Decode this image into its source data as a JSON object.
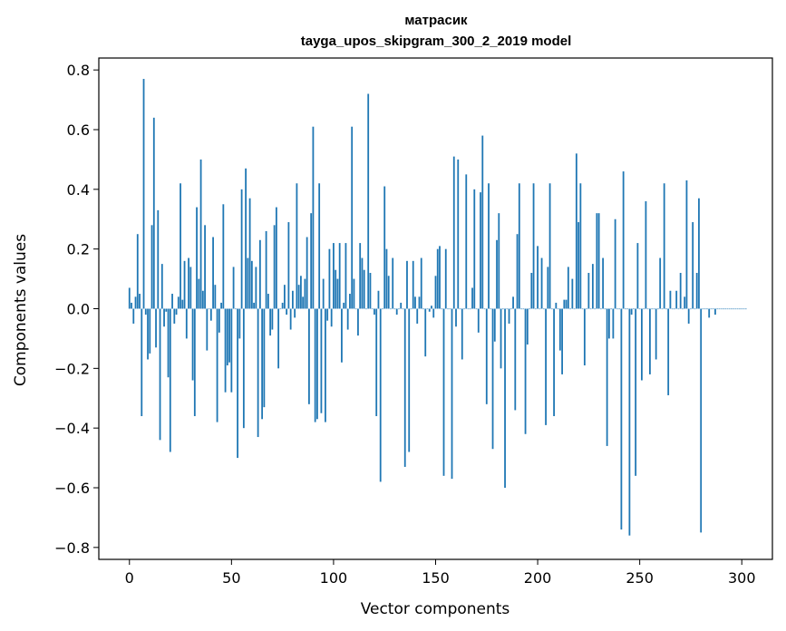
{
  "chart_data": {
    "type": "bar",
    "title": "матрасик",
    "subtitle": "tayga_upos_skipgram_300_2_2019 model",
    "xlabel": "Vector components",
    "ylabel": "Components values",
    "xlim": [
      -15,
      315
    ],
    "ylim": [
      -0.84,
      0.84
    ],
    "xticks": [
      0,
      50,
      100,
      150,
      200,
      250,
      300
    ],
    "xtick_labels": [
      "0",
      "50",
      "100",
      "150",
      "200",
      "250",
      "300"
    ],
    "yticks": [
      0.8,
      0.6,
      0.4,
      0.2,
      0.0,
      -0.2,
      -0.4,
      -0.6,
      -0.8
    ],
    "ytick_labels": [
      "0.8",
      "0.6",
      "0.4",
      "0.2",
      "0.0",
      "−0.2",
      "−0.4",
      "−0.6",
      "−0.8"
    ],
    "grid": false,
    "legend": "none",
    "bar_color": "#1f77b4",
    "values": [
      0.07,
      0.02,
      -0.05,
      0.04,
      0.25,
      0.05,
      -0.36,
      0.77,
      -0.02,
      -0.17,
      -0.15,
      0.28,
      0.64,
      -0.13,
      0.33,
      -0.44,
      0.15,
      -0.06,
      -0.01,
      -0.23,
      -0.48,
      0.05,
      -0.05,
      -0.02,
      0.04,
      0.42,
      0.03,
      0.16,
      -0.1,
      0.17,
      0.14,
      -0.24,
      -0.36,
      0.34,
      0.1,
      0.5,
      0.06,
      0.28,
      -0.14,
      0.0,
      -0.04,
      0.24,
      0.08,
      -0.38,
      -0.08,
      0.02,
      0.35,
      -0.28,
      -0.19,
      -0.18,
      -0.28,
      0.14,
      0.0,
      -0.5,
      -0.1,
      0.4,
      -0.4,
      0.47,
      0.17,
      0.37,
      0.16,
      0.02,
      0.14,
      -0.43,
      0.23,
      -0.37,
      -0.33,
      0.26,
      0.05,
      -0.09,
      -0.07,
      0.28,
      0.34,
      -0.2,
      0.0,
      0.02,
      0.08,
      -0.02,
      0.29,
      -0.07,
      0.06,
      -0.03,
      0.42,
      0.08,
      0.11,
      0.04,
      0.1,
      0.24,
      -0.32,
      0.32,
      0.61,
      -0.38,
      -0.37,
      0.42,
      -0.35,
      0.1,
      -0.38,
      -0.04,
      0.2,
      -0.06,
      0.22,
      0.13,
      0.1,
      0.22,
      -0.18,
      0.02,
      0.22,
      -0.07,
      0.05,
      0.61,
      0.1,
      0.0,
      -0.09,
      0.22,
      0.17,
      0.13,
      0.0,
      0.72,
      0.12,
      0.0,
      -0.02,
      -0.36,
      0.06,
      -0.58,
      0.0,
      0.41,
      0.2,
      0.11,
      0.0,
      0.17,
      0.0,
      -0.02,
      0.0,
      0.02,
      0.0,
      -0.53,
      0.16,
      -0.48,
      0.0,
      0.16,
      0.04,
      -0.05,
      0.04,
      0.17,
      0.0,
      -0.16,
      0.0,
      -0.01,
      0.01,
      -0.03,
      0.11,
      0.2,
      0.21,
      0.0,
      -0.56,
      0.2,
      0.0,
      0.0,
      -0.57,
      0.51,
      -0.06,
      0.5,
      0.0,
      -0.17,
      0.0,
      0.45,
      0.0,
      0.0,
      0.07,
      0.4,
      0.0,
      -0.08,
      0.39,
      0.58,
      0.0,
      -0.32,
      0.42,
      0.0,
      -0.47,
      -0.11,
      0.23,
      0.32,
      -0.2,
      0.0,
      -0.6,
      0.0,
      -0.05,
      0.0,
      0.04,
      -0.34,
      0.25,
      0.42,
      0.0,
      0.0,
      -0.42,
      -0.12,
      0.0,
      0.12,
      0.42,
      0.0,
      0.21,
      0.0,
      0.17,
      0.0,
      -0.39,
      0.14,
      0.42,
      0.0,
      -0.36,
      0.02,
      0.0,
      -0.14,
      -0.22,
      0.03,
      0.03,
      0.14,
      0.0,
      0.1,
      0.0,
      0.52,
      0.29,
      0.42,
      0.0,
      -0.19,
      0.0,
      0.12,
      0.0,
      0.15,
      0.0,
      0.32,
      0.32,
      0.0,
      0.17,
      0.0,
      -0.46,
      -0.1,
      0.0,
      -0.1,
      0.3,
      0.0,
      0.0,
      -0.74,
      0.46,
      0.0,
      0.0,
      -0.76,
      -0.02,
      0.0,
      -0.56,
      0.22,
      0.0,
      -0.24,
      0.0,
      0.36,
      0.0,
      -0.22,
      0.0,
      0.0,
      -0.17,
      0.0,
      0.17,
      0.0,
      0.42,
      0.0,
      -0.29,
      0.06,
      0.0,
      0.0,
      0.06,
      0.0,
      0.12,
      0.0,
      0.04,
      0.43,
      -0.05,
      0.0,
      0.29,
      0.0,
      0.12,
      0.37,
      -0.75,
      0.0,
      0.0,
      0.0,
      -0.03,
      0.0,
      0.0,
      -0.02,
      0.0,
      0.0,
      0.0,
      0.0,
      0.0,
      0.0,
      0.0,
      0.0,
      0.0,
      0.0,
      0.0,
      0.0,
      0.0,
      0.0,
      0.0
    ]
  }
}
